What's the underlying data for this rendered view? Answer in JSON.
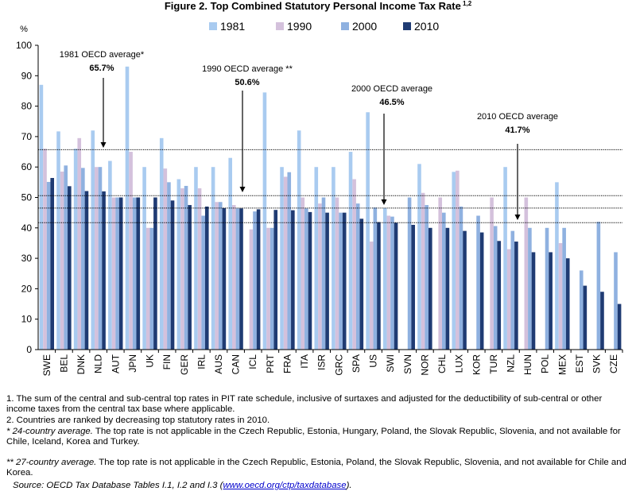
{
  "chart_data": {
    "type": "bar",
    "title": "Figure 2. Top Combined Statutory Personal Income Tax Rate",
    "title_superscript": "1,2",
    "ylabel": "%",
    "ylim": [
      0,
      100
    ],
    "yticks": [
      0,
      10,
      20,
      30,
      40,
      50,
      60,
      70,
      80,
      90,
      100
    ],
    "legend_position": "top",
    "categories": [
      "SWE",
      "BEL",
      "DNK",
      "NLD",
      "AUT",
      "JPN",
      "UK",
      "FIN",
      "GER",
      "IRL",
      "AUS",
      "CAN",
      "ICL",
      "PRT",
      "FRA",
      "ITA",
      "ISR",
      "GRC",
      "SPA",
      "US",
      "SWI",
      "SVN",
      "NOR",
      "CHL",
      "LUX",
      "KOR",
      "TUR",
      "NZL",
      "HUN",
      "POL",
      "MEX",
      "EST",
      "SVK",
      "CZE"
    ],
    "series": [
      {
        "name": "1981",
        "color": "#a9cbf0",
        "values": [
          87,
          71.7,
          66,
          72,
          62,
          93,
          60,
          69.5,
          56,
          60,
          60,
          63,
          null,
          84.5,
          60,
          72,
          60,
          60,
          65,
          78,
          46.5,
          null,
          61,
          null,
          58.4,
          null,
          null,
          60,
          null,
          null,
          55,
          null,
          null,
          null
        ]
      },
      {
        "name": "1990",
        "color": "#d4c1dc",
        "values": [
          66,
          58.5,
          69.5,
          60,
          50,
          65,
          40,
          59.5,
          53,
          53,
          48.5,
          47.5,
          39.5,
          40,
          56.8,
          50,
          48,
          50,
          56,
          35.5,
          44,
          null,
          51.5,
          50,
          58.8,
          null,
          50,
          33,
          50,
          null,
          35,
          null,
          null,
          null
        ]
      },
      {
        "name": "2000",
        "color": "#8fb1e0",
        "values": [
          55.1,
          60.5,
          59.7,
          60,
          50,
          50,
          40,
          55,
          53.8,
          44,
          48.5,
          46.4,
          45.4,
          40,
          58.3,
          46.4,
          50,
          45,
          48,
          46.7,
          43.7,
          50,
          47.5,
          45,
          47,
          44,
          40.6,
          39,
          40,
          40,
          40,
          26,
          42,
          32
        ]
      },
      {
        "name": "2010",
        "color": "#1f3b73",
        "values": [
          56.4,
          53.7,
          52.1,
          52,
          50,
          50,
          50,
          49,
          47.5,
          47,
          46.5,
          46.4,
          46.1,
          45.9,
          45.8,
          45.2,
          45,
          45,
          43,
          41.9,
          41.7,
          41,
          40,
          40,
          39,
          38.5,
          35.7,
          35.5,
          32,
          32,
          30,
          21,
          19,
          15
        ]
      }
    ],
    "reference_lines": [
      {
        "value": 65.7,
        "label": "1981 OECD average*",
        "value_label": "65.7%",
        "anchor_category": "NLD"
      },
      {
        "value": 50.6,
        "label": "1990 OECD average **",
        "value_label": "50.6%",
        "anchor_category": "CAN"
      },
      {
        "value": 46.5,
        "label": "2000 OECD average",
        "value_label": "46.5%",
        "anchor_category": "SWI"
      },
      {
        "value": 41.7,
        "label": "2010 OECD average",
        "value_label": "41.7%",
        "anchor_category": "NZL"
      }
    ]
  },
  "notes": {
    "n1": "1. The sum of the central and sub-central top rates in PIT rate schedule, inclusive of surtaxes and adjusted for the deductibility of sub-central or other income taxes from the central tax base where applicable.",
    "n2": "2. Countries are ranked by decreasing top statutory rates in 2010.",
    "n3_lead": "* 24-country average.",
    "n3_text": " The top rate is not applicable in the Czech Republic, Estonia, Hungary, Poland, the Slovak Republic, Slovenia, and not available for Chile, Iceland, Korea and Turkey.",
    "n4_lead": "** 27-country average.",
    "n4_text": " The top rate is not applicable in the Czech Republic, Estonia, Poland, the Slovak Republic, Slovenia, and not available for Chile and Korea.",
    "source_prefix": "Source: OECD Tax Database Tables I.1, I.2 and I.3 (",
    "source_link": "www.oecd.org/ctp/taxdatabase",
    "source_suffix": ")."
  }
}
